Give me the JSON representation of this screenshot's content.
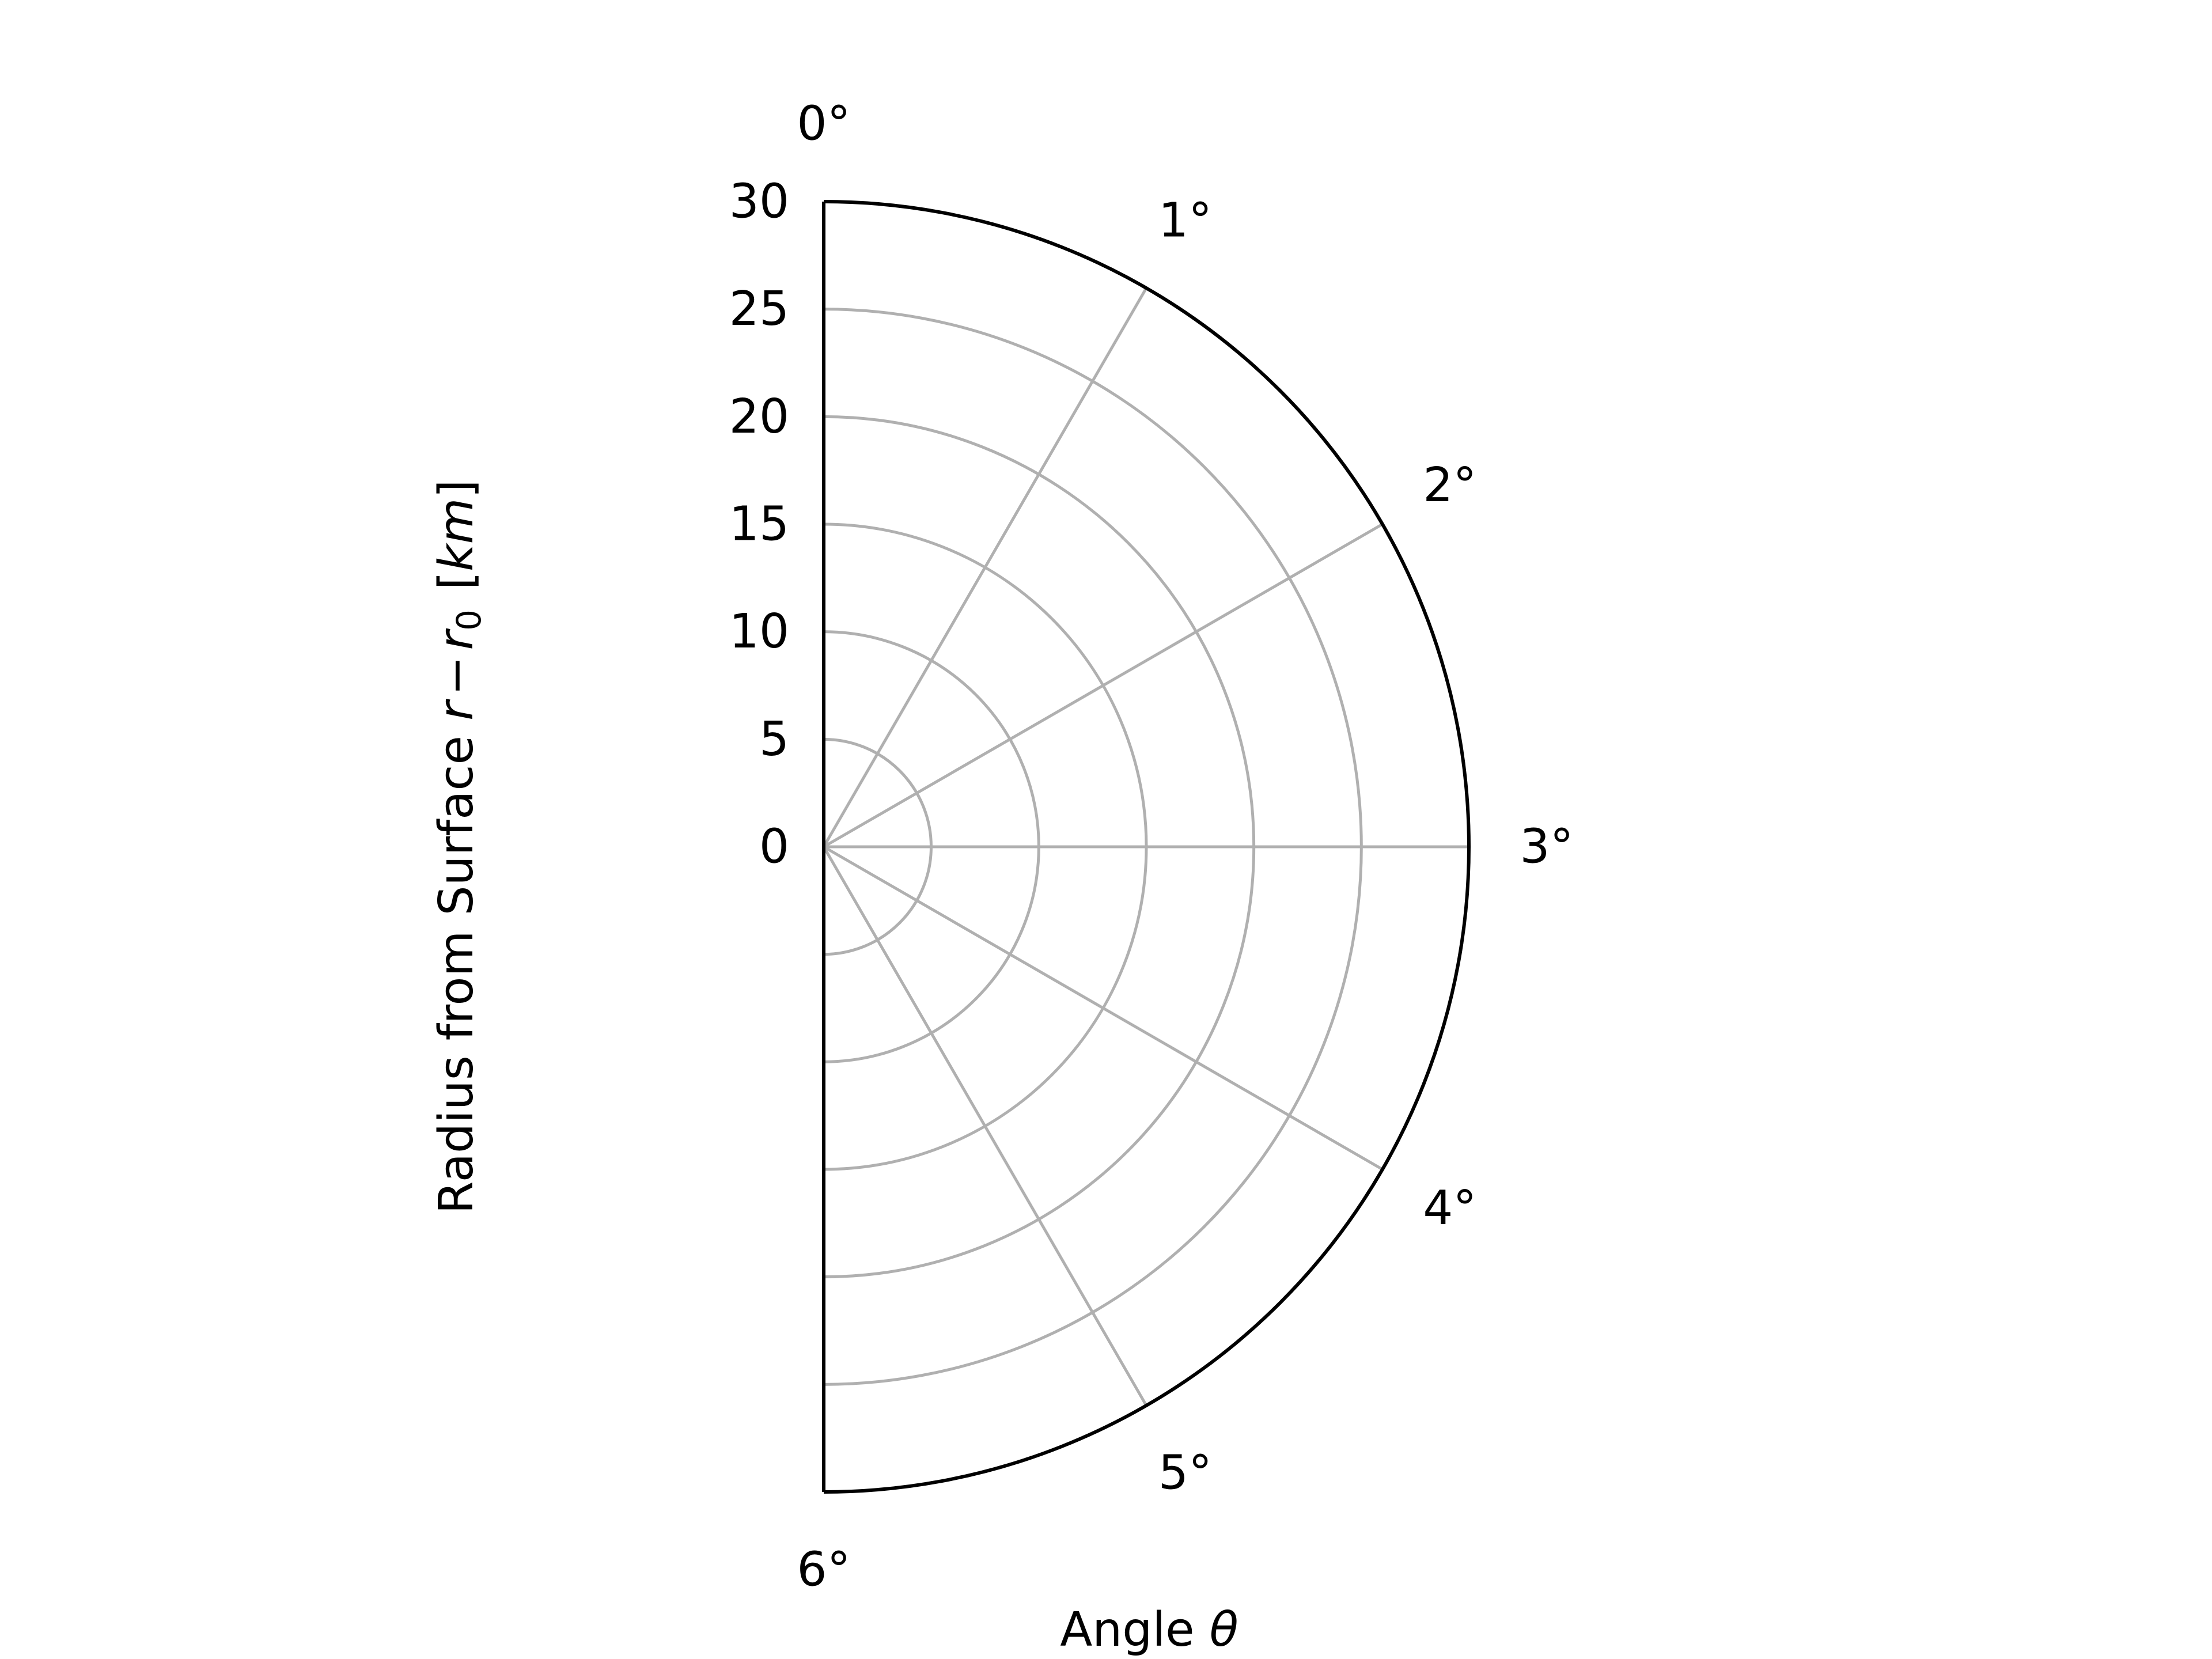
{
  "chart_data": {
    "type": "polar",
    "title": "",
    "xlabel": "Angle θ",
    "ylabel": "Radius from Surface r − r₀  [km]",
    "ylabel_parts": {
      "text": "Radius from Surface ",
      "r": "r",
      "minus": "−",
      "r0": "r",
      "r0_sub": "0",
      "unit_open": "[",
      "unit": "km",
      "unit_close": "]"
    },
    "xlabel_parts": {
      "text": "Angle ",
      "theta": "θ"
    },
    "theta_range_deg": [
      0,
      6
    ],
    "theta_ticks": [
      0,
      1,
      2,
      3,
      4,
      5,
      6
    ],
    "theta_tick_labels": [
      "0°",
      "1°",
      "2°",
      "3°",
      "4°",
      "5°",
      "6°"
    ],
    "r_range": [
      0,
      30
    ],
    "r_ticks": [
      0,
      5,
      10,
      15,
      20,
      25,
      30
    ],
    "r_tick_labels": [
      "0",
      "5",
      "10",
      "15",
      "20",
      "25",
      "30"
    ],
    "grid": true,
    "colors": {
      "grid": "#b0b0b0",
      "frame": "#000000",
      "text": "#000000",
      "background": "#ffffff"
    },
    "series": []
  }
}
